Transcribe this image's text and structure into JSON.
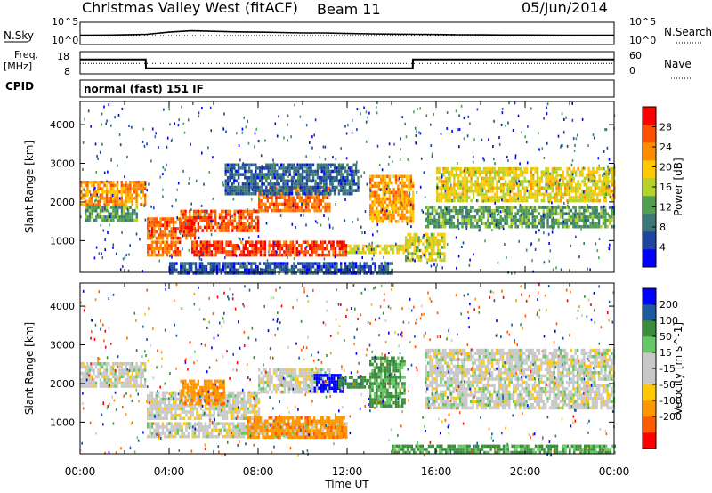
{
  "header": {
    "station": "Christmas Valley West (fitACF)",
    "beam": "Beam 11",
    "date": "05/Jun/2014"
  },
  "side_labels": {
    "nsky": "N.Sky",
    "nsearch": "N.Search",
    "freq_line1": "Freq.",
    "freq_line2": "[MHz]",
    "nave": "Nave",
    "cpid": "CPID",
    "cpid_value": "normal (fast) 151 IF"
  },
  "noise_axis": {
    "left_top": "10^5",
    "left_bottom": "10^0",
    "right_top": "10^5",
    "right_bottom": "10^0"
  },
  "freq_axis": {
    "left_top": "18",
    "left_bottom": "8",
    "right_top": "60",
    "right_bottom": "0"
  },
  "colors": {
    "power_scale": [
      "#0000ff",
      "#1e46a0",
      "#3c7878",
      "#50a050",
      "#b4d228",
      "#ffc800",
      "#ff8c00",
      "#ff5000",
      "#ff0000"
    ],
    "velocity_scale": [
      "#ff0000",
      "#ff5a00",
      "#ff9600",
      "#ffc800",
      "#c8c8c8",
      "#c8c8c8",
      "#64c864",
      "#3c8c3c",
      "#1e5aa0",
      "#0000ff"
    ]
  },
  "chart_data": [
    {
      "type": "line",
      "name": "noise-panel",
      "x_range_hours": [
        0,
        24
      ],
      "series": [
        {
          "name": "N.Sky",
          "x": [
            0,
            1,
            2,
            3,
            4,
            5,
            6,
            7,
            8,
            9,
            10,
            11,
            12,
            13,
            14,
            15,
            16,
            17,
            18,
            19,
            20,
            21,
            22,
            23,
            24
          ],
          "values": [
            120,
            130,
            150,
            200,
            600,
            1200,
            900,
            700,
            600,
            500,
            400,
            400,
            300,
            250,
            220,
            200,
            180,
            160,
            150,
            140,
            140,
            130,
            120,
            120,
            120
          ]
        },
        {
          "name": "N.Search",
          "x": [
            0,
            6,
            12,
            18,
            24
          ],
          "values": [
            100,
            100,
            100,
            100,
            100
          ]
        }
      ],
      "ylim_log10": [
        0,
        5
      ]
    },
    {
      "type": "line",
      "name": "frequency-nave-panel",
      "x_range_hours": [
        0,
        24
      ],
      "series": [
        {
          "name": "Freq. [MHz]",
          "x": [
            0,
            2.95,
            2.96,
            14.95,
            14.96,
            24
          ],
          "values": [
            14.5,
            14.5,
            10.5,
            10.5,
            14.5,
            14.5
          ]
        },
        {
          "name": "Nave",
          "x": [
            0,
            24
          ],
          "values": [
            28,
            28
          ]
        }
      ],
      "ylim_left": [
        8,
        18
      ],
      "ylim_right": [
        0,
        60
      ]
    },
    {
      "type": "heatmap",
      "name": "power-panel",
      "xlabel": "",
      "ylabel": "Slant Range [km]",
      "xlim_hours": [
        0,
        24
      ],
      "ylim": [
        180,
        4600
      ],
      "yticks": [
        1000,
        2000,
        3000,
        4000
      ],
      "colorbar": {
        "label": "Power [dB]",
        "ticks": [
          4,
          8,
          12,
          16,
          20,
          24,
          28
        ],
        "range": [
          0,
          32
        ]
      },
      "features": [
        {
          "t0": 0.0,
          "t1": 2.9,
          "r0": 1900,
          "r1": 2550,
          "level": 23
        },
        {
          "t0": 0.2,
          "t1": 2.6,
          "r0": 1500,
          "r1": 1900,
          "level": 12
        },
        {
          "t0": 3.0,
          "t1": 5.2,
          "r0": 1100,
          "r1": 1600,
          "level": 26
        },
        {
          "t0": 3.0,
          "t1": 4.5,
          "r0": 600,
          "r1": 1000,
          "level": 25
        },
        {
          "t0": 4.5,
          "t1": 8.0,
          "r0": 1300,
          "r1": 1800,
          "level": 27
        },
        {
          "t0": 8.0,
          "t1": 11.2,
          "r0": 1800,
          "r1": 2400,
          "level": 25
        },
        {
          "t0": 5.0,
          "t1": 12.0,
          "r0": 600,
          "r1": 1000,
          "level": 28
        },
        {
          "t0": 12.0,
          "t1": 14.5,
          "r0": 700,
          "r1": 900,
          "level": 18
        },
        {
          "t0": 13.0,
          "t1": 15.0,
          "r0": 1500,
          "r1": 2700,
          "level": 22
        },
        {
          "t0": 14.6,
          "t1": 16.4,
          "r0": 500,
          "r1": 1200,
          "level": 17
        },
        {
          "t0": 15.5,
          "t1": 24.0,
          "r0": 1400,
          "r1": 1900,
          "level": 12
        },
        {
          "t0": 16.0,
          "t1": 24.0,
          "r0": 2000,
          "r1": 2900,
          "level": 18
        },
        {
          "t0": 6.5,
          "t1": 12.5,
          "r0": 2200,
          "r1": 3000,
          "level": 7
        },
        {
          "t0": 4.0,
          "t1": 14.0,
          "r0": 180,
          "r1": 450,
          "level": 6
        }
      ]
    },
    {
      "type": "heatmap",
      "name": "velocity-panel",
      "xlabel": "Time UT",
      "ylabel": "Slant Range [km]",
      "xlim_hours": [
        0,
        24
      ],
      "xticks": [
        "00:00",
        "04:00",
        "08:00",
        "12:00",
        "16:00",
        "20:00",
        "00:00"
      ],
      "ylim": [
        180,
        4600
      ],
      "yticks": [
        1000,
        2000,
        3000,
        4000
      ],
      "colorbar": {
        "label": "Velocity [m s^-1]",
        "ticks": [
          200,
          100,
          50,
          15,
          -15,
          -50,
          -100,
          -200
        ],
        "range": [
          -250,
          250
        ]
      },
      "features": [
        {
          "t0": 0.0,
          "t1": 2.9,
          "r0": 1900,
          "r1": 2550,
          "level": 0
        },
        {
          "t0": 3.0,
          "t1": 8.0,
          "r0": 1100,
          "r1": 1800,
          "level": 0
        },
        {
          "t0": 8.0,
          "t1": 11.2,
          "r0": 1800,
          "r1": 2400,
          "level": 0
        },
        {
          "t0": 3.0,
          "t1": 12.0,
          "r0": 600,
          "r1": 1000,
          "level": 0
        },
        {
          "t0": 7.5,
          "t1": 12.0,
          "r0": 650,
          "r1": 1150,
          "level": -60
        },
        {
          "t0": 10.5,
          "t1": 11.8,
          "r0": 1800,
          "r1": 2250,
          "level": 220
        },
        {
          "t0": 11.6,
          "t1": 13.0,
          "r0": 1900,
          "r1": 2200,
          "level": 60
        },
        {
          "t0": 13.0,
          "t1": 14.6,
          "r0": 1400,
          "r1": 2700,
          "level": 40
        },
        {
          "t0": 15.5,
          "t1": 24.0,
          "r0": 1400,
          "r1": 2900,
          "level": 0
        },
        {
          "t0": 4.5,
          "t1": 6.5,
          "r0": 1500,
          "r1": 2100,
          "level": -60
        },
        {
          "t0": 14.0,
          "t1": 24.0,
          "r0": 180,
          "r1": 420,
          "level": 40
        }
      ]
    }
  ]
}
